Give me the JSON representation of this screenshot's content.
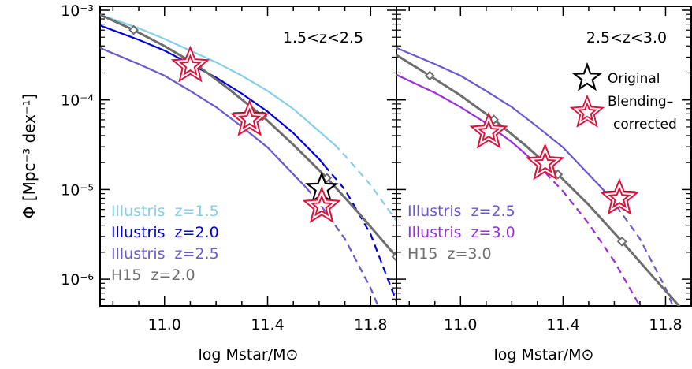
{
  "ylabel": "Φ [Mpc⁻³ dex⁻¹]",
  "chart_data": [
    {
      "type": "line",
      "panel_label": "1.5<z<2.5",
      "xlabel": "log M_star/M_⊙",
      "ylabel": "Φ [Mpc⁻³ dex⁻¹]",
      "xlim": [
        10.75,
        11.9
      ],
      "ylim_log10": [
        -6.55,
        -3.0
      ],
      "xticks": [
        "11.0",
        "11.4",
        "11.8"
      ],
      "yticks": [
        "10⁻³",
        "10⁻⁴",
        "10⁻⁵",
        "10⁻⁶"
      ],
      "series": [
        {
          "name": "Illustris z=1.5",
          "color": "#87ceeb",
          "style": "solid-then-dashed",
          "solid_until_x": 11.66,
          "x": [
            10.75,
            10.9,
            11.0,
            11.1,
            11.2,
            11.3,
            11.4,
            11.5,
            11.6,
            11.66,
            11.7,
            11.8,
            11.9
          ],
          "log10_y": [
            -3.05,
            -3.2,
            -3.32,
            -3.45,
            -3.58,
            -3.73,
            -3.9,
            -4.1,
            -4.35,
            -4.5,
            -4.62,
            -4.95,
            -5.35
          ]
        },
        {
          "name": "Illustris z=2.0",
          "color": "#0000dd",
          "style": "solid-then-dashed",
          "solid_until_x": 11.62,
          "x": [
            10.75,
            10.9,
            11.0,
            11.1,
            11.2,
            11.3,
            11.4,
            11.5,
            11.6,
            11.62,
            11.7,
            11.8,
            11.9
          ],
          "log10_y": [
            -3.17,
            -3.33,
            -3.45,
            -3.6,
            -3.75,
            -3.93,
            -4.13,
            -4.37,
            -4.66,
            -4.73,
            -5.0,
            -5.5,
            -6.25
          ]
        },
        {
          "name": "Illustris z=2.5",
          "color": "#6a5acd",
          "style": "solid-then-dashed",
          "solid_until_x": 11.55,
          "x": [
            10.75,
            10.9,
            11.0,
            11.1,
            11.2,
            11.3,
            11.4,
            11.5,
            11.55,
            11.6,
            11.7,
            11.8,
            11.85
          ],
          "log10_y": [
            -3.42,
            -3.6,
            -3.73,
            -3.9,
            -4.08,
            -4.3,
            -4.53,
            -4.83,
            -4.98,
            -5.15,
            -5.55,
            -6.1,
            -6.45
          ]
        },
        {
          "name": "H15 z=2.0",
          "color": "#6e6e6e",
          "style": "solid-with-diamonds",
          "x": [
            10.75,
            10.88,
            11.0,
            11.13,
            11.25,
            11.38,
            11.5,
            11.63,
            11.75,
            11.9
          ],
          "log10_y": [
            -3.05,
            -3.22,
            -3.4,
            -3.62,
            -3.88,
            -4.18,
            -4.5,
            -4.87,
            -5.25,
            -5.75
          ],
          "markers_x": [
            10.88,
            11.13,
            11.38,
            11.63,
            11.9
          ]
        }
      ],
      "points": [
        {
          "name": "Original",
          "x": [
            11.1,
            11.33,
            11.61
          ],
          "log10_y": [
            -3.62,
            -4.2,
            -4.99
          ]
        },
        {
          "name": "Blending-corrected",
          "x": [
            11.1,
            11.33,
            11.61
          ],
          "log10_y": [
            -3.62,
            -4.22,
            -5.19
          ]
        }
      ],
      "legend_text": [
        {
          "label": "Illustris",
          "z": "z=1.5",
          "color": "#87ceeb"
        },
        {
          "label": "Illustris",
          "z": "z=2.0",
          "color": "#0000dd"
        },
        {
          "label": "Illustris",
          "z": "z=2.5",
          "color": "#6a5acd"
        },
        {
          "label": "H15",
          "z": "z=2.0",
          "color": "#6e6e6e"
        }
      ]
    },
    {
      "type": "line",
      "panel_label": "2.5<z<3.0",
      "xlabel": "log M_star/M_⊙",
      "ylabel": "",
      "xlim": [
        10.75,
        11.9
      ],
      "ylim_log10": [
        -6.55,
        -3.0
      ],
      "xticks": [
        "11.0",
        "11.4",
        "11.8"
      ],
      "series": [
        {
          "name": "Illustris z=2.5",
          "color": "#6a5acd",
          "style": "solid-then-dashed",
          "solid_until_x": 11.55,
          "x": [
            10.75,
            10.9,
            11.0,
            11.1,
            11.2,
            11.3,
            11.4,
            11.5,
            11.55,
            11.6,
            11.7,
            11.8,
            11.85
          ],
          "log10_y": [
            -3.42,
            -3.6,
            -3.73,
            -3.9,
            -4.08,
            -4.3,
            -4.53,
            -4.83,
            -4.98,
            -5.15,
            -5.55,
            -6.1,
            -6.45
          ]
        },
        {
          "name": "Illustris z=3.0",
          "color": "#9b30d9",
          "style": "solid-then-dashed",
          "solid_until_x": 11.3,
          "x": [
            10.75,
            10.9,
            11.0,
            11.1,
            11.2,
            11.3,
            11.4,
            11.5,
            11.6,
            11.7,
            11.75
          ],
          "log10_y": [
            -3.72,
            -3.92,
            -4.08,
            -4.26,
            -4.47,
            -4.72,
            -5.02,
            -5.38,
            -5.8,
            -6.3,
            -6.55
          ]
        },
        {
          "name": "H15 z=3.0",
          "color": "#6e6e6e",
          "style": "solid-with-diamonds",
          "x": [
            10.75,
            10.88,
            11.0,
            11.13,
            11.25,
            11.38,
            11.5,
            11.63,
            11.75,
            11.9
          ],
          "log10_y": [
            -3.5,
            -3.73,
            -3.95,
            -4.22,
            -4.5,
            -4.83,
            -5.17,
            -5.58,
            -5.97,
            -6.45
          ],
          "markers_x": [
            10.88,
            11.13,
            11.38,
            11.63,
            11.9
          ]
        }
      ],
      "points": [
        {
          "name": "Original",
          "x": [
            11.11,
            11.33,
            11.62
          ],
          "log10_y": [
            -4.35,
            -4.7,
            -5.08
          ]
        },
        {
          "name": "Blending-corrected",
          "x": [
            11.11,
            11.33,
            11.62
          ],
          "log10_y": [
            -4.36,
            -4.71,
            -5.1
          ]
        }
      ],
      "legend_text": [
        {
          "label": "Illustris",
          "z": "z=2.5",
          "color": "#6a5acd"
        },
        {
          "label": "Illustris",
          "z": "z=3.0",
          "color": "#9b30d9"
        },
        {
          "label": "H15",
          "z": "z=3.0",
          "color": "#6e6e6e"
        }
      ],
      "symbol_legend": [
        {
          "label": "Original",
          "color": "#000000"
        },
        {
          "label": "Blending–",
          "label2": "corrected",
          "color": "#dc143c"
        }
      ]
    }
  ]
}
